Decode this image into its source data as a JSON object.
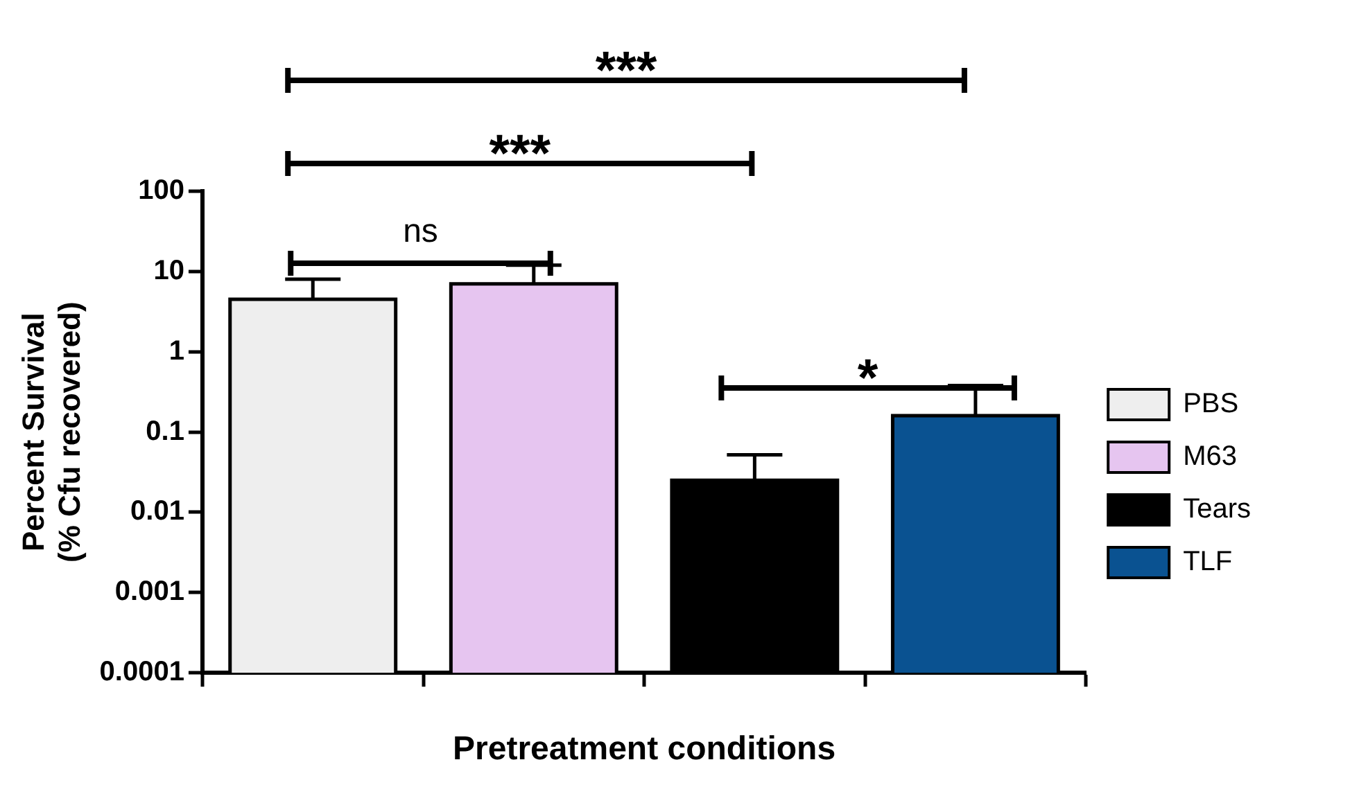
{
  "chart_data": {
    "type": "bar",
    "categories": [
      null,
      null,
      null,
      null
    ],
    "stacked": true,
    "series": [
      {
        "name": "PBS",
        "color": "#eeeeee",
        "values": [
          4.5,
          null,
          null,
          null
        ],
        "errors": [
          [
            4.5,
            8
          ],
          null,
          null,
          null
        ]
      },
      {
        "name": "M63",
        "color": "#e6c5f0",
        "values": [
          null,
          7,
          null,
          null
        ],
        "errors": [
          null,
          [
            7,
            12
          ],
          null,
          null
        ]
      },
      {
        "name": "Tears",
        "color": "#000000",
        "values": [
          null,
          null,
          0.025,
          null
        ],
        "errors": [
          null,
          null,
          [
            0.025,
            0.052
          ],
          null
        ]
      },
      {
        "name": "TLF",
        "color": "#0a5291",
        "values": [
          null,
          null,
          null,
          0.16
        ],
        "errors": [
          null,
          null,
          null,
          [
            0.16,
            0.38
          ]
        ]
      }
    ],
    "log": "y",
    "ylim": [
      0.0001,
      100
    ],
    "yticks": [
      0.0001,
      0.001,
      0.01,
      0.1,
      1,
      10,
      100
    ],
    "ylabel": "Percent Survival\n(% Cfu recovered)",
    "xlabel": "Pretreatment conditions",
    "annotations": [
      "***",
      "***",
      "ns",
      "*"
    ],
    "legend": "right",
    "grid": false
  }
}
